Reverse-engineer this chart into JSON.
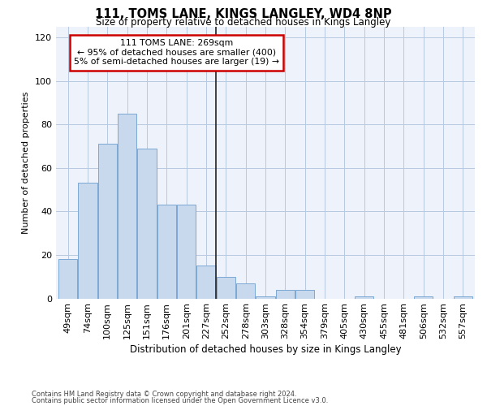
{
  "title": "111, TOMS LANE, KINGS LANGLEY, WD4 8NP",
  "subtitle": "Size of property relative to detached houses in Kings Langley",
  "xlabel": "Distribution of detached houses by size in Kings Langley",
  "ylabel": "Number of detached properties",
  "bar_color": "#c8d9ee",
  "bar_edge_color": "#7ba8d4",
  "background_color": "#ffffff",
  "plot_bg_color": "#eef2fa",
  "categories": [
    "49sqm",
    "74sqm",
    "100sqm",
    "125sqm",
    "151sqm",
    "176sqm",
    "201sqm",
    "227sqm",
    "252sqm",
    "278sqm",
    "303sqm",
    "328sqm",
    "354sqm",
    "379sqm",
    "405sqm",
    "430sqm",
    "455sqm",
    "481sqm",
    "506sqm",
    "532sqm",
    "557sqm"
  ],
  "values": [
    18,
    53,
    71,
    85,
    69,
    43,
    43,
    15,
    10,
    7,
    1,
    4,
    4,
    0,
    0,
    1,
    0,
    0,
    1,
    0,
    1
  ],
  "ylim": [
    0,
    125
  ],
  "yticks": [
    0,
    20,
    40,
    60,
    80,
    100,
    120
  ],
  "property_line_idx": 7.5,
  "annotation_line1": "111 TOMS LANE: 269sqm",
  "annotation_line2": "← 95% of detached houses are smaller (400)",
  "annotation_line3": "5% of semi-detached houses are larger (19) →",
  "footnote1": "Contains HM Land Registry data © Crown copyright and database right 2024.",
  "footnote2": "Contains public sector information licensed under the Open Government Licence v3.0.",
  "grid_color": "#b8c8e0",
  "line_color": "#222222",
  "box_edge_color": "#cc0000",
  "title_fontsize": 10.5,
  "subtitle_fontsize": 8.5,
  "xlabel_fontsize": 8.5,
  "ylabel_fontsize": 8.0,
  "tick_fontsize": 8.0,
  "annot_fontsize": 7.8,
  "footnote_fontsize": 6.0
}
